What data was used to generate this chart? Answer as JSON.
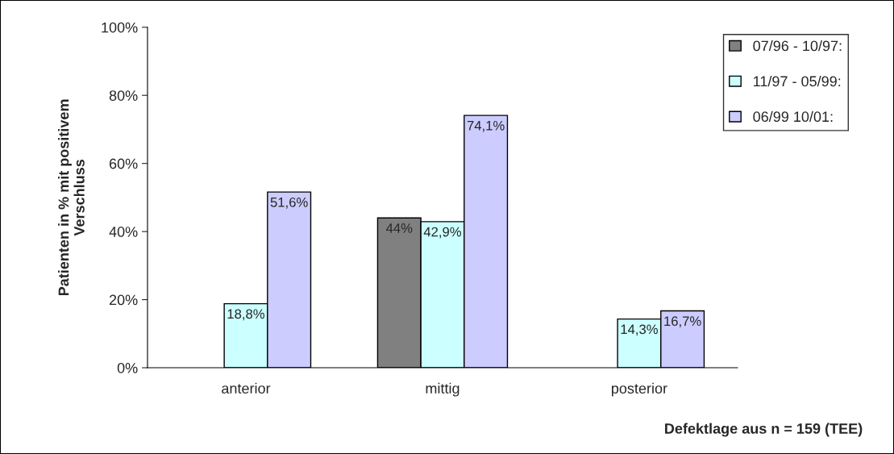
{
  "chart_data": {
    "type": "bar",
    "xlabel": "Defektlage aus n = 159 (TEE)",
    "ylabel": "Patienten in % mit positivem\nVerschluss",
    "categories": [
      "anterior",
      "mittig",
      "posterior"
    ],
    "series": [
      {
        "name": "07/96 - 10/97:",
        "color": "#808080",
        "values": [
          null,
          44,
          null
        ],
        "value_labels": [
          null,
          "44%",
          null
        ]
      },
      {
        "name": "11/97 - 05/99:",
        "color": "#ccffff",
        "values": [
          18.8,
          42.9,
          14.3
        ],
        "value_labels": [
          "18,8%",
          "42,9%",
          "14,3%"
        ]
      },
      {
        "name": "06/99 10/01:",
        "color": "#ccccff",
        "values": [
          51.6,
          74.1,
          16.7
        ],
        "value_labels": [
          "51,6%",
          "74,1%",
          "16,7%"
        ]
      }
    ],
    "ylim": [
      0,
      100
    ],
    "yticks": [
      {
        "value": 0,
        "label": "0%"
      },
      {
        "value": 20,
        "label": "20%"
      },
      {
        "value": 40,
        "label": "40%"
      },
      {
        "value": 60,
        "label": "60%"
      },
      {
        "value": 80,
        "label": "80%"
      },
      {
        "value": 100,
        "label": "100%"
      }
    ],
    "grid": false,
    "legend": "top right"
  }
}
